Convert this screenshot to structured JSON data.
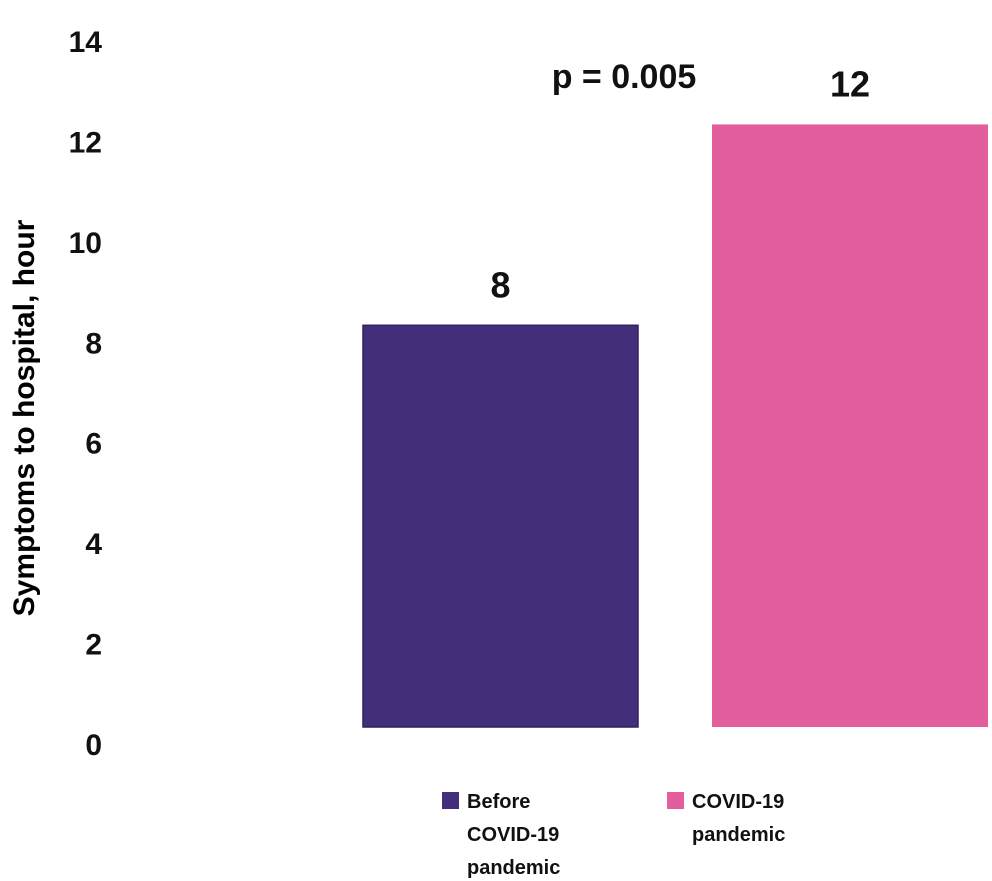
{
  "chart_data": {
    "type": "bar",
    "categories": [
      "Before COVID-19 pandemic",
      "COVID-19 pandemic"
    ],
    "values": [
      8,
      12
    ],
    "data_labels": [
      "8",
      "12"
    ],
    "colors": [
      "#422e79",
      "#e35e9c"
    ],
    "ylabel": "Symptoms to hospital, hour",
    "ylim": [
      0,
      14
    ],
    "yticks": [
      "0",
      "2",
      "4",
      "6",
      "8",
      "10",
      "12",
      "14"
    ],
    "annotation": "p = 0.005",
    "grid": false,
    "legend": {
      "placement": "bottom",
      "entries": [
        {
          "lines": [
            "Before",
            "COVID-19",
            "pandemic"
          ],
          "color": "#422e79"
        },
        {
          "lines": [
            "COVID-19",
            "pandemic"
          ],
          "color": "#e35e9c"
        }
      ]
    }
  }
}
